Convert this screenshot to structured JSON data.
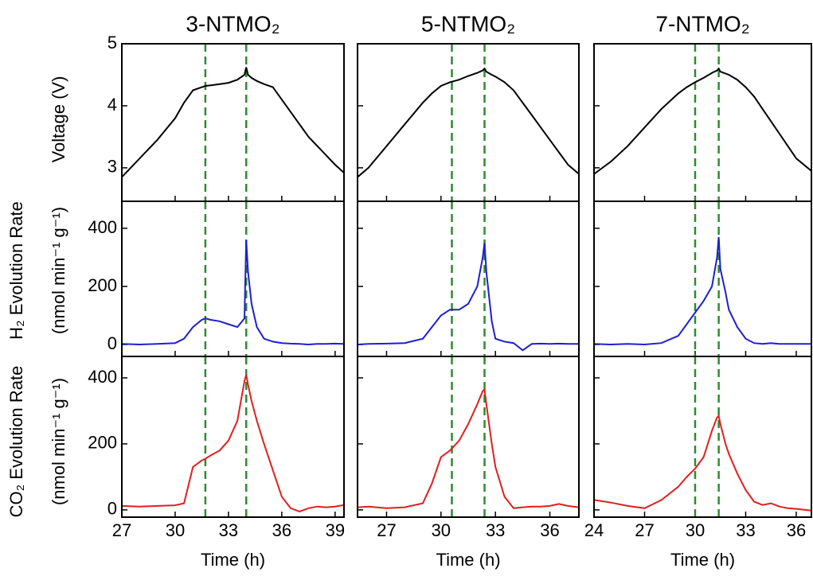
{
  "chart_data": {
    "type": "line",
    "xlabel": "Time (h)",
    "rows": [
      {
        "ylabel": [
          "Voltage (V)"
        ],
        "ylim": [
          2.46,
          5
        ],
        "yticks": [
          3,
          4,
          5
        ],
        "color": "#000000"
      },
      {
        "ylabel": [
          "H₂ Evolution Rate",
          "(nmol min⁻¹ g⁻¹)"
        ],
        "ylim": [
          -41,
          493
        ],
        "yticks": [
          0,
          200,
          400
        ],
        "color": "#1f1fd0"
      },
      {
        "ylabel": [
          "CO₂ Evolution Rate",
          "(nmol min⁻¹ g⁻¹)"
        ],
        "ylim": [
          -22,
          465
        ],
        "yticks": [
          0,
          200,
          400
        ],
        "color": "#e01f1f"
      }
    ],
    "vline_color": "#2e8b2e",
    "columns": [
      {
        "title": "3-NTMO₂",
        "xlim": [
          27,
          39.5
        ],
        "xticks": [
          27,
          30,
          33,
          36,
          39
        ],
        "vlines": [
          31.7,
          34
        ],
        "x": [
          27,
          28,
          29,
          30,
          30.5,
          31,
          31.5,
          31.7,
          32,
          32.5,
          33,
          33.5,
          33.9,
          34,
          34.1,
          34.3,
          34.6,
          35,
          35.5,
          36,
          36.5,
          37,
          37.5,
          38,
          38.5,
          39,
          39.5
        ],
        "series": [
          [
            2.85,
            3.15,
            3.45,
            3.8,
            4.05,
            4.25,
            4.3,
            4.32,
            4.33,
            4.35,
            4.37,
            4.42,
            4.5,
            4.62,
            4.5,
            4.45,
            4.4,
            4.35,
            4.3,
            4.1,
            3.9,
            3.7,
            3.5,
            3.35,
            3.2,
            3.05,
            2.92
          ],
          [
            2,
            0,
            2,
            5,
            20,
            60,
            85,
            90,
            85,
            80,
            70,
            60,
            90,
            360,
            250,
            140,
            60,
            20,
            10,
            5,
            3,
            2,
            0,
            2,
            2,
            3,
            2
          ],
          [
            12,
            10,
            12,
            14,
            20,
            130,
            150,
            155,
            165,
            180,
            210,
            270,
            390,
            410,
            380,
            330,
            270,
            200,
            120,
            40,
            5,
            -5,
            5,
            10,
            8,
            10,
            15
          ]
        ]
      },
      {
        "title": "5-NTMO₂",
        "xlim": [
          25.4,
          37.6
        ],
        "xticks": [
          27,
          30,
          33,
          36
        ],
        "vlines": [
          30.6,
          32.4
        ],
        "x": [
          25.4,
          26,
          27,
          28,
          29,
          29.5,
          30,
          30.5,
          31,
          31.5,
          32,
          32.3,
          32.4,
          32.5,
          32.8,
          33,
          33.5,
          34,
          34.5,
          35,
          35.5,
          36,
          36.5,
          37,
          37.6
        ],
        "series": [
          [
            2.85,
            3.0,
            3.35,
            3.7,
            4.05,
            4.2,
            4.32,
            4.38,
            4.42,
            4.48,
            4.53,
            4.57,
            4.6,
            4.55,
            4.5,
            4.47,
            4.38,
            4.25,
            4.05,
            3.85,
            3.65,
            3.45,
            3.25,
            3.05,
            2.9
          ],
          [
            0,
            2,
            3,
            5,
            20,
            60,
            100,
            120,
            120,
            140,
            200,
            300,
            350,
            250,
            80,
            20,
            10,
            5,
            -20,
            2,
            3,
            2,
            3,
            2,
            2
          ],
          [
            8,
            10,
            5,
            8,
            20,
            80,
            160,
            180,
            210,
            260,
            320,
            360,
            365,
            320,
            200,
            130,
            40,
            5,
            8,
            10,
            10,
            12,
            18,
            12,
            8
          ]
        ]
      },
      {
        "title": "7-NTMO₂",
        "xlim": [
          24,
          36.9
        ],
        "xticks": [
          24,
          27,
          30,
          33,
          36
        ],
        "vlines": [
          30,
          31.4
        ],
        "x": [
          24,
          25,
          26,
          27,
          28,
          29,
          29.5,
          30,
          30.5,
          31,
          31.3,
          31.4,
          31.5,
          31.8,
          32,
          32.5,
          33,
          33.5,
          34,
          34.5,
          35,
          35.5,
          36,
          36.9
        ],
        "series": [
          [
            2.9,
            3.1,
            3.35,
            3.65,
            3.95,
            4.2,
            4.3,
            4.38,
            4.45,
            4.53,
            4.57,
            4.6,
            4.55,
            4.52,
            4.5,
            4.42,
            4.3,
            4.15,
            3.95,
            3.75,
            3.55,
            3.35,
            3.15,
            2.95
          ],
          [
            2,
            0,
            2,
            0,
            5,
            30,
            70,
            110,
            150,
            200,
            300,
            370,
            260,
            180,
            120,
            60,
            20,
            5,
            2,
            5,
            2,
            2,
            2,
            2
          ],
          [
            30,
            22,
            12,
            5,
            30,
            70,
            100,
            125,
            160,
            240,
            280,
            285,
            260,
            200,
            170,
            110,
            60,
            25,
            15,
            20,
            10,
            5,
            3,
            -2
          ]
        ]
      }
    ]
  }
}
